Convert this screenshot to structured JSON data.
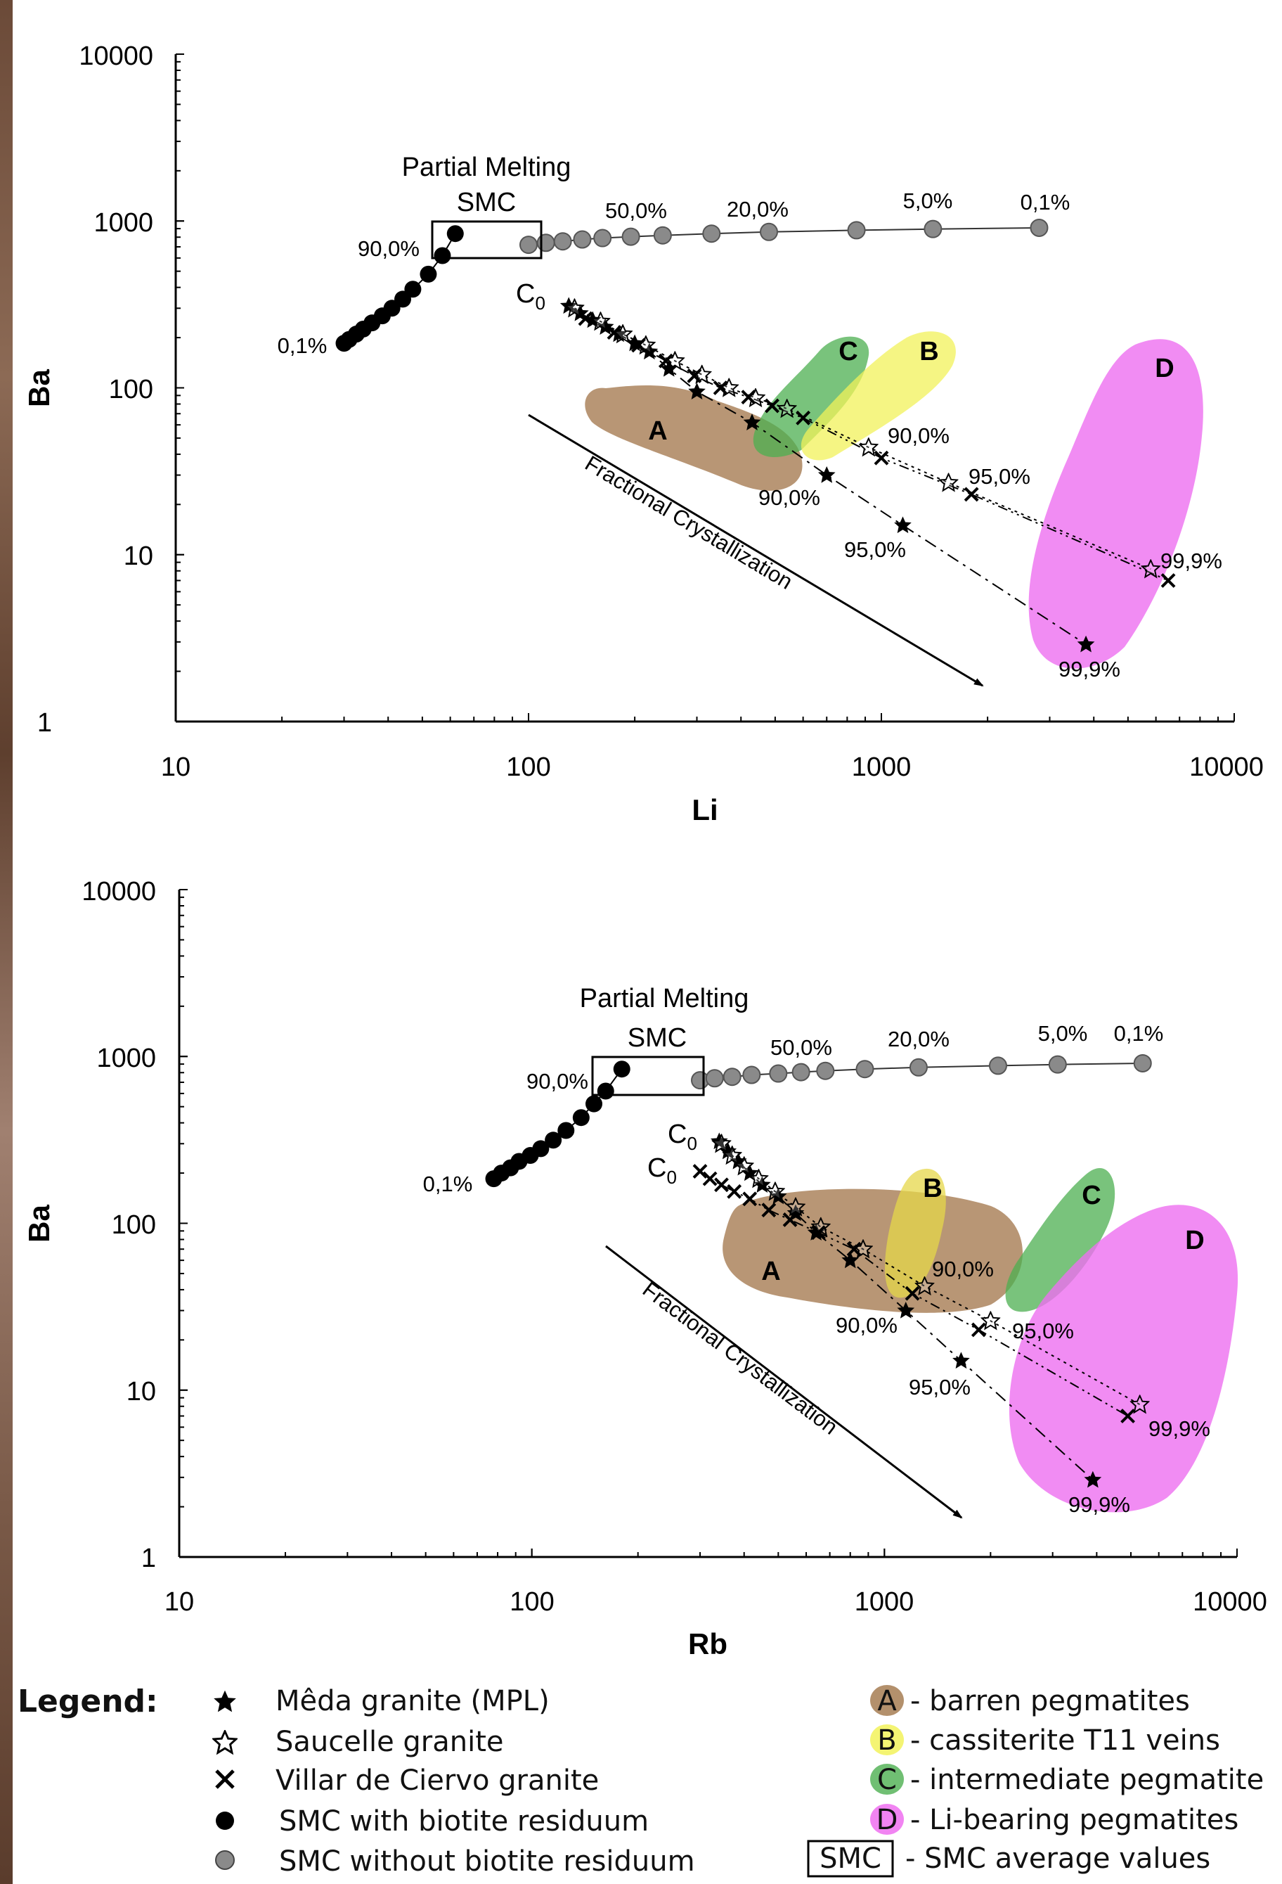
{
  "chart_data": [
    {
      "type": "scatter",
      "xscale": "log",
      "yscale": "log",
      "xlim": [
        10,
        10000
      ],
      "ylim": [
        1,
        10000
      ],
      "xlabel": "Li",
      "ylabel": "Ba",
      "xticks": [
        "10",
        "100",
        "1000",
        "10000"
      ],
      "yticks": [
        "1",
        "10",
        "100",
        "1000",
        "10000"
      ],
      "series": [
        {
          "marker": "black-circle",
          "points": [
            [
              30,
              185
            ],
            [
              31,
              195
            ],
            [
              32.5,
              210
            ],
            [
              34,
              225
            ],
            [
              36,
              245
            ],
            [
              38.5,
              270
            ],
            [
              41,
              300
            ],
            [
              44,
              340
            ],
            [
              47,
              390
            ],
            [
              52,
              480
            ],
            [
              57,
              620
            ],
            [
              62,
              840
            ]
          ]
        },
        {
          "marker": "grey-circle",
          "points": [
            [
              100,
              720
            ],
            [
              112,
              740
            ],
            [
              125,
              755
            ],
            [
              142,
              775
            ],
            [
              162,
              790
            ],
            [
              195,
              805
            ],
            [
              240,
              820
            ],
            [
              330,
              840
            ],
            [
              480,
              860
            ],
            [
              850,
              880
            ],
            [
              1400,
              895
            ],
            [
              2800,
              910
            ]
          ]
        },
        {
          "marker": "black-star",
          "points": [
            [
              130,
              310
            ],
            [
              140,
              280
            ],
            [
              152,
              255
            ],
            [
              165,
              232
            ],
            [
              180,
              210
            ],
            [
              200,
              185
            ],
            [
              220,
              165
            ],
            [
              250,
              130
            ],
            [
              300,
              95
            ],
            [
              430,
              62
            ],
            [
              700,
              30
            ],
            [
              1150,
              15
            ],
            [
              3800,
              2.9
            ]
          ]
        },
        {
          "marker": "open-star",
          "points": [
            [
              135,
              300
            ],
            [
              160,
              250
            ],
            [
              185,
              210
            ],
            [
              215,
              180
            ],
            [
              260,
              145
            ],
            [
              310,
              120
            ],
            [
              370,
              100
            ],
            [
              440,
              87
            ],
            [
              540,
              75
            ],
            [
              920,
              44
            ],
            [
              1550,
              27
            ],
            [
              5800,
              8.2
            ]
          ]
        },
        {
          "marker": "cross",
          "points": [
            [
              145,
              260
            ],
            [
              175,
              215
            ],
            [
              205,
              180
            ],
            [
              245,
              145
            ],
            [
              295,
              118
            ],
            [
              350,
              100
            ],
            [
              420,
              88
            ],
            [
              490,
              78
            ],
            [
              600,
              66
            ],
            [
              1000,
              38
            ],
            [
              1800,
              23
            ],
            [
              6500,
              7
            ]
          ]
        }
      ],
      "fields": [
        {
          "label": "A",
          "color": "#a67c52"
        },
        {
          "label": "B",
          "color": "#f2f25a"
        },
        {
          "label": "C",
          "color": "#4caf50"
        },
        {
          "label": "D",
          "color": "#ee6ff0"
        }
      ],
      "annotations": [
        "Partial Melting",
        "SMC",
        "50,0%",
        "20,0%",
        "5,0%",
        "0,1%",
        "90,0%",
        "0,1%",
        "C0",
        "90,0%",
        "95,0%",
        "90,0%",
        "95,0%",
        "99,9%",
        "99,9%"
      ],
      "arrow_label": "Fractional Crystallization"
    },
    {
      "type": "scatter",
      "xscale": "log",
      "yscale": "log",
      "xlim": [
        10,
        10000
      ],
      "ylim": [
        1,
        10000
      ],
      "xlabel": "Rb",
      "ylabel": "Ba",
      "xticks": [
        "10",
        "100",
        "1000",
        "10000"
      ],
      "yticks": [
        "1",
        "10",
        "100",
        "1000",
        "10000"
      ],
      "series": [
        {
          "marker": "black-circle",
          "points": [
            [
              78,
              185
            ],
            [
              82,
              200
            ],
            [
              87,
              215
            ],
            [
              92,
              235
            ],
            [
              99,
              255
            ],
            [
              106,
              280
            ],
            [
              115,
              315
            ],
            [
              125,
              360
            ],
            [
              138,
              430
            ],
            [
              150,
              520
            ],
            [
              162,
              620
            ],
            [
              180,
              840
            ]
          ]
        },
        {
          "marker": "grey-circle",
          "points": [
            [
              300,
              720
            ],
            [
              330,
              740
            ],
            [
              370,
              755
            ],
            [
              420,
              775
            ],
            [
              500,
              790
            ],
            [
              580,
              805
            ],
            [
              680,
              820
            ],
            [
              880,
              840
            ],
            [
              1250,
              860
            ],
            [
              2100,
              880
            ],
            [
              3100,
              895
            ],
            [
              5400,
              910
            ]
          ]
        },
        {
          "marker": "black-star",
          "points": [
            [
              340,
              310
            ],
            [
              360,
              270
            ],
            [
              385,
              235
            ],
            [
              415,
              200
            ],
            [
              450,
              170
            ],
            [
              500,
              145
            ],
            [
              560,
              115
            ],
            [
              640,
              88
            ],
            [
              800,
              60
            ],
            [
              1150,
              30
            ],
            [
              1650,
              15
            ],
            [
              3900,
              2.9
            ]
          ]
        },
        {
          "marker": "open-star",
          "points": [
            [
              345,
              300
            ],
            [
              370,
              255
            ],
            [
              400,
              220
            ],
            [
              440,
              185
            ],
            [
              490,
              155
            ],
            [
              560,
              125
            ],
            [
              660,
              95
            ],
            [
              870,
              70
            ],
            [
              1300,
              42
            ],
            [
              2000,
              26
            ],
            [
              5300,
              8.2
            ]
          ]
        },
        {
          "marker": "cross",
          "points": [
            [
              300,
              205
            ],
            [
              320,
              185
            ],
            [
              345,
              170
            ],
            [
              375,
              155
            ],
            [
              415,
              140
            ],
            [
              470,
              120
            ],
            [
              540,
              105
            ],
            [
              650,
              88
            ],
            [
              820,
              70
            ],
            [
              1200,
              38
            ],
            [
              1850,
              23
            ],
            [
              4900,
              7
            ]
          ]
        }
      ],
      "fields": [
        {
          "label": "A",
          "color": "#a67c52"
        },
        {
          "label": "B",
          "color": "#f2f25a"
        },
        {
          "label": "C",
          "color": "#4caf50"
        },
        {
          "label": "D",
          "color": "#ee6ff0"
        }
      ],
      "annotations": [
        "Partial Melting",
        "SMC",
        "50,0%",
        "20,0%",
        "5,0%",
        "0,1%",
        "90,0%",
        "0,1%",
        "C0",
        "C0",
        "90,0%",
        "90,0%",
        "95,0%",
        "95,0%",
        "99,9%",
        "99,9%"
      ],
      "arrow_label": "Fractional Crystallization"
    }
  ],
  "labels": {
    "p1_partial": "Partial Melting",
    "p1_smc": "SMC",
    "p1_50": "50,0%",
    "p1_20": "20,0%",
    "p1_5": "5,0%",
    "p1_01": "0,1%",
    "p1_90_black": "90,0%",
    "p1_01_black": "0,1%",
    "p1_c0": "C",
    "p1_c0_sub": "0",
    "p1_90a": "90,0%",
    "p1_90b": "90,0%",
    "p1_95a": "95,0%",
    "p1_95b": "95,0%",
    "p1_999a": "99,9%",
    "p1_999b": "99,9%",
    "p2_partial": "Partial Melting",
    "p2_smc": "SMC",
    "p2_50": "50,0%",
    "p2_20": "20,0%",
    "p2_5": "5,0%",
    "p2_01": "0,1%",
    "p2_90_black": "90,0%",
    "p2_01_black": "0,1%",
    "p2_c0a": "C",
    "p2_c0a_sub": "0",
    "p2_c0b": "C",
    "p2_c0b_sub": "0",
    "p2_90a": "90,0%",
    "p2_90b": "90,0%",
    "p2_95a": "95,0%",
    "p2_95b": "95,0%",
    "p2_999a": "99,9%",
    "p2_999b": "99,9%",
    "field_a": "A",
    "field_b": "B",
    "field_c": "C",
    "field_d": "D",
    "arrow": "Fractional Crystallization"
  },
  "legend": {
    "title": "Legend:",
    "items_left": [
      {
        "symbol": "black-star",
        "label": "Mêda granite (MPL)"
      },
      {
        "symbol": "open-star",
        "label": "Saucelle granite"
      },
      {
        "symbol": "cross",
        "label": "Villar de Ciervo granite"
      },
      {
        "symbol": "black-circle",
        "label": "SMC with biotite residuum"
      },
      {
        "symbol": "grey-circle",
        "label": "SMC without biotite residuum"
      }
    ],
    "items_right": [
      {
        "key": "A",
        "color": "#a67c52",
        "label": "- barren pegmatites"
      },
      {
        "key": "B",
        "color": "#f2f25a",
        "label": "- cassiterite T11 veins"
      },
      {
        "key": "C",
        "color": "#4caf50",
        "label": "- intermediate pegmatite"
      },
      {
        "key": "D",
        "color": "#ee6ff0",
        "label": "- Li-bearing pegmatites"
      },
      {
        "key": "SMC",
        "color": "#ffffff",
        "label": "- SMC average values"
      }
    ]
  }
}
